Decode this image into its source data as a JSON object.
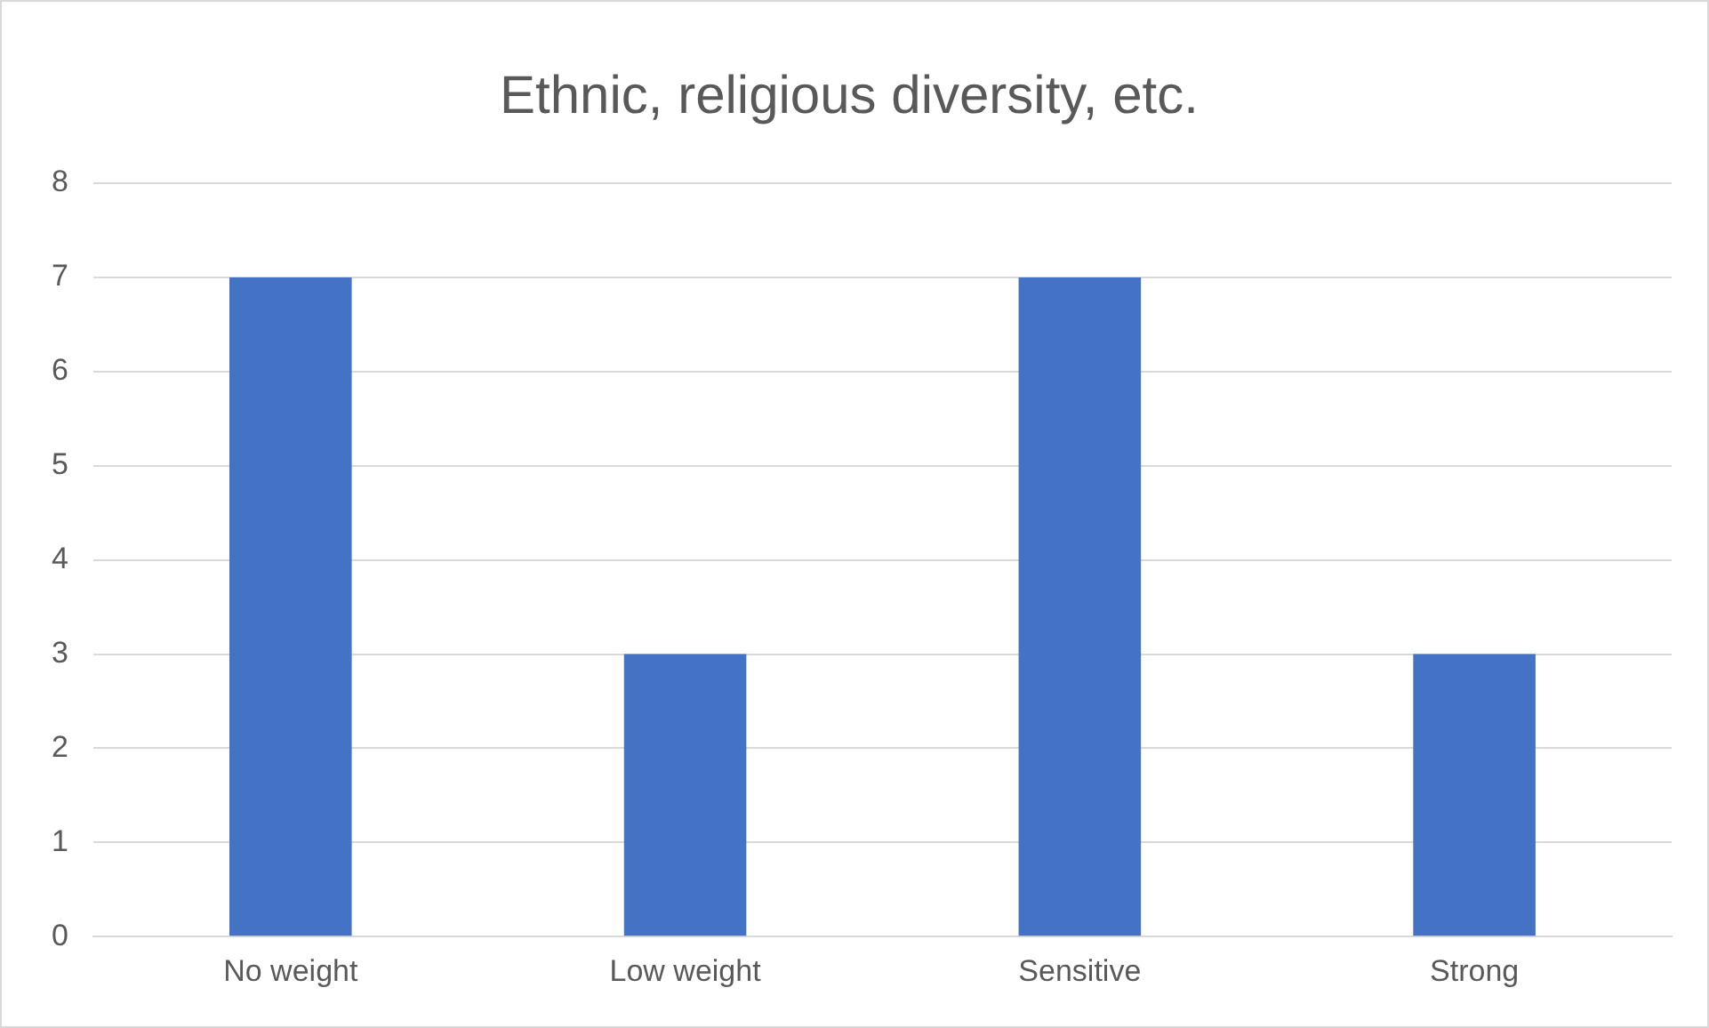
{
  "chart_data": {
    "type": "bar",
    "title": "Ethnic, religious diversity, etc.",
    "categories": [
      "No weight",
      "Low weight",
      "Sensitive",
      "Strong"
    ],
    "values": [
      7,
      3,
      7,
      3
    ],
    "color": "#4472c4",
    "ylim": [
      0,
      8
    ],
    "yticks": [
      0,
      1,
      2,
      3,
      4,
      5,
      6,
      7,
      8
    ],
    "grid": "y",
    "legend": false
  }
}
